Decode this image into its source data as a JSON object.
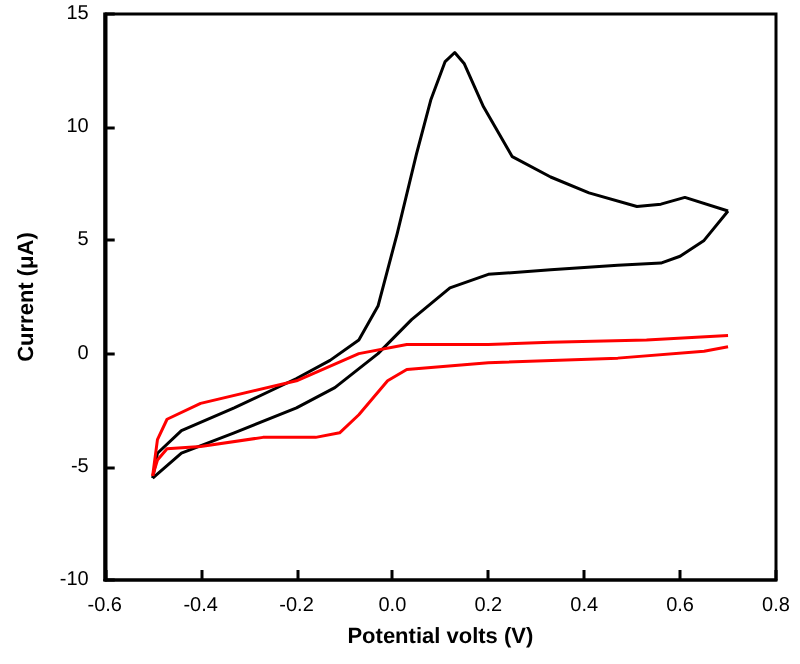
{
  "chart_data": {
    "type": "line",
    "xlabel": "Potential volts (V)",
    "ylabel": "Current (μA)",
    "xlim": [
      -0.6,
      0.8
    ],
    "xticks": [
      -0.6,
      -0.4,
      -0.2,
      {
        "value": 0,
        "label": "0.0"
      },
      0.2,
      0.4,
      0.6,
      0.8
    ],
    "ylim": [
      -10,
      15
    ],
    "yticks": [
      -10,
      -5,
      0,
      5,
      10,
      15
    ],
    "grid": false,
    "marker": "none",
    "line_style": "solid",
    "series": [
      {
        "color": "#000000",
        "x": [
          -0.5,
          -0.44,
          -0.33,
          -0.2,
          -0.12,
          -0.03,
          0.04,
          0.12,
          0.2,
          0.33,
          0.47,
          0.56,
          0.6,
          0.65,
          0.7
        ],
        "values": [
          -5.5,
          -4.4,
          -3.5,
          -2.4,
          -1.5,
          0,
          1.5,
          2.9,
          3.5,
          3.7,
          3.9,
          4.0,
          4.3,
          5.0,
          6.3
        ]
      },
      {
        "color": "#000000",
        "x": [
          -0.5,
          -0.49,
          -0.44,
          -0.33,
          -0.2,
          -0.13,
          -0.07,
          -0.03,
          0.01,
          0.05,
          0.08,
          0.11,
          0.13,
          0.15,
          0.19,
          0.25,
          0.33,
          0.41,
          0.51,
          0.56,
          0.61,
          0.7
        ],
        "values": [
          -5.5,
          -4.4,
          -3.4,
          -2.4,
          -1.1,
          -0.3,
          0.6,
          2.1,
          5.3,
          8.8,
          11.2,
          12.9,
          13.3,
          12.8,
          10.9,
          8.7,
          7.8,
          7.1,
          6.5,
          6.6,
          6.9,
          6.3
        ]
      },
      {
        "color": "#ff0000",
        "x": [
          -0.5,
          -0.49,
          -0.47,
          -0.4,
          -0.2,
          -0.07,
          0.03,
          0.2,
          0.33,
          0.53,
          0.7
        ],
        "values": [
          -5.4,
          -3.8,
          -2.9,
          -2.2,
          -1.2,
          0,
          0.4,
          0.4,
          0.5,
          0.6,
          0.8
        ]
      },
      {
        "color": "#ff0000",
        "x": [
          -0.5,
          -0.49,
          -0.47,
          -0.4,
          -0.27,
          -0.16,
          -0.11,
          -0.07,
          -0.01,
          0.03,
          0.2,
          0.47,
          0.65,
          0.7
        ],
        "values": [
          -5.4,
          -4.7,
          -4.2,
          -4.1,
          -3.7,
          -3.7,
          -3.5,
          -2.7,
          -1.2,
          -0.7,
          -0.4,
          -0.2,
          0.1,
          0.3
        ]
      }
    ]
  }
}
